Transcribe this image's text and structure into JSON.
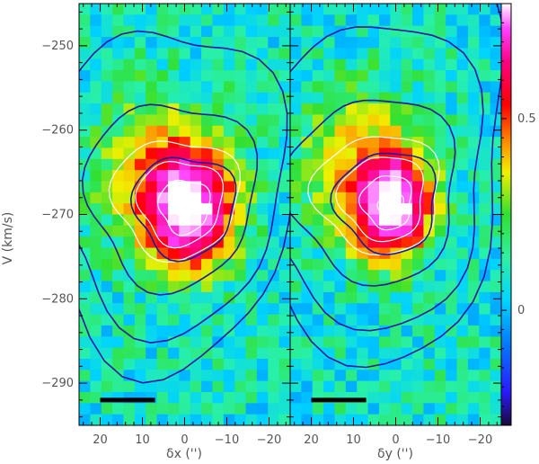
{
  "chart_data": [
    {
      "type": "heatmap",
      "panel": "left",
      "xlabel": "δx ('')",
      "ylabel": "V (km/s)",
      "xlim": [
        25,
        -25
      ],
      "ylim": [
        -295,
        -245
      ],
      "xticks": [
        20,
        10,
        0,
        -10,
        -20
      ],
      "xtick_labels": [
        "20",
        "10",
        "0",
        "−10",
        "−20"
      ],
      "yticks": [
        -250,
        -260,
        -270,
        -280,
        -290
      ],
      "ytick_labels": [
        "−250",
        "−260",
        "−270",
        "−280",
        "−290"
      ],
      "peak": {
        "x": -1,
        "v": -269.5
      },
      "extent": {
        "sx": 7,
        "sv": 4.6
      },
      "scale_bar": {
        "x_from": 20,
        "x_to": 7,
        "v": -292
      }
    },
    {
      "type": "heatmap",
      "panel": "right",
      "xlabel": "δy ('')",
      "ylabel": "",
      "xlim": [
        25,
        -25
      ],
      "ylim": [
        -295,
        -245
      ],
      "xticks": [
        20,
        10,
        0,
        -10,
        -20
      ],
      "xtick_labels": [
        "20",
        "10",
        "0",
        "−10",
        "−20"
      ],
      "peak": {
        "x": 1,
        "v": -269
      },
      "extent": {
        "sx": 6,
        "sv": 4.0
      },
      "scale_bar": {
        "x_from": 20,
        "x_to": 7,
        "v": -292
      }
    }
  ],
  "colorbar": {
    "ticks": [
      0.5,
      0
    ],
    "tick_labels": [
      "0.5",
      "0"
    ],
    "range": [
      -0.3,
      0.8
    ]
  },
  "colors": {
    "contour_outer": "#1a1aa0",
    "contour_inner": "#ffffff",
    "scale_bar": "#000000"
  }
}
